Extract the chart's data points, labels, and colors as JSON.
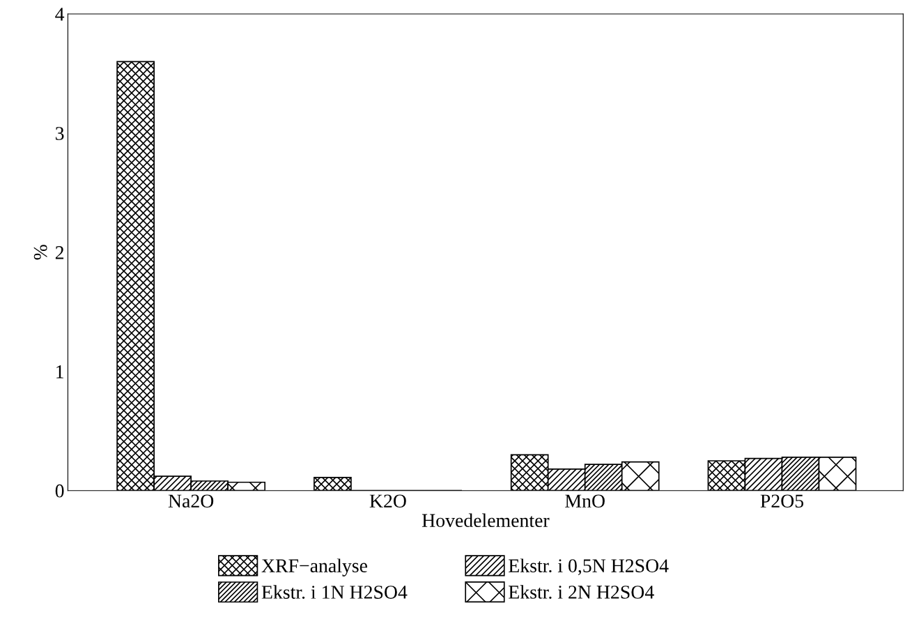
{
  "chart_data": {
    "type": "bar",
    "xlabel": "Hovedelementer",
    "ylabel": "%",
    "categories": [
      "Na2O",
      "K2O",
      "MnO",
      "P2O5"
    ],
    "series": [
      {
        "name": "XRF−analyse",
        "color": "#000000",
        "values": [
          3.6,
          0.11,
          0.3,
          0.25
        ]
      },
      {
        "name": "Ekstr. i 0,5N H2SO4",
        "color": "#000000",
        "values": [
          0.12,
          0,
          0.18,
          0.27
        ]
      },
      {
        "name": "Ekstr. i 1N H2SO4",
        "color": "#000000",
        "values": [
          0.08,
          0,
          0.22,
          0.28
        ]
      },
      {
        "name": "Ekstr. i 2N H2SO4",
        "color": "#000000",
        "values": [
          0.07,
          0,
          0.24,
          0.28
        ]
      }
    ],
    "ylim": [
      0,
      4
    ],
    "yticks": [
      0,
      1,
      2,
      3,
      4
    ],
    "legend": "bottom",
    "grid": false
  }
}
